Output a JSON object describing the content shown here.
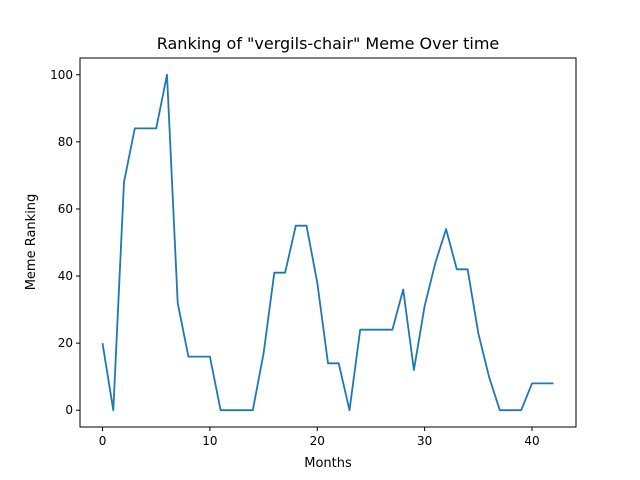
{
  "chart_data": {
    "type": "line",
    "title": "Ranking of \"vergils-chair\" Meme Over time",
    "xlabel": "Months",
    "ylabel": "Meme Ranking",
    "xlim": [
      -2.1,
      44.1
    ],
    "ylim": [
      -5,
      105
    ],
    "xticks": [
      0,
      10,
      20,
      30,
      40
    ],
    "yticks": [
      0,
      20,
      40,
      60,
      80,
      100
    ],
    "grid": false,
    "colors": {
      "line": "#1f77b4"
    },
    "series": [
      {
        "x": [
          0,
          1,
          2,
          3,
          4,
          5,
          6,
          7,
          8,
          9,
          10,
          11,
          12,
          13,
          14,
          15,
          16,
          17,
          18,
          19,
          20,
          21,
          22,
          23,
          24,
          25,
          26,
          27,
          28,
          29,
          30,
          31,
          32,
          33,
          34,
          35,
          36,
          37,
          38,
          39,
          40,
          41,
          42
        ],
        "values": [
          20,
          0,
          68,
          84,
          84,
          84,
          100,
          32,
          16,
          16,
          16,
          0,
          0,
          0,
          0,
          17,
          41,
          41,
          55,
          55,
          38,
          14,
          14,
          0,
          24,
          24,
          24,
          24,
          36,
          12,
          31,
          44,
          54,
          42,
          42,
          23,
          10,
          0,
          0,
          0,
          8,
          8,
          8
        ]
      }
    ]
  }
}
